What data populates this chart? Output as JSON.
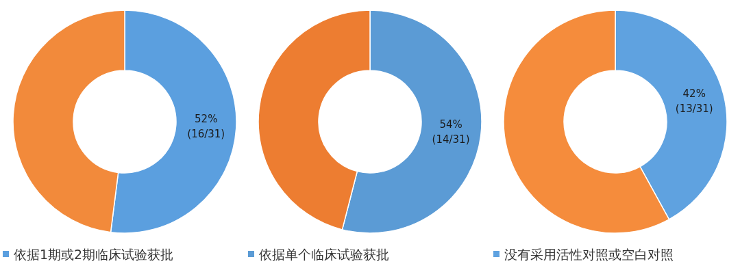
{
  "chart_data": [
    {
      "type": "donut",
      "categories": [
        "依据1期或2期临床试验获批",
        null
      ],
      "values": [
        52,
        48
      ],
      "colors": [
        "#5b9fdf",
        "#f28a3b"
      ],
      "value_labels": [
        "52%\n(16/31)",
        null
      ],
      "legend": "bottom"
    },
    {
      "type": "donut",
      "categories": [
        "依据单个临床试验获批",
        null
      ],
      "values": [
        54,
        46
      ],
      "colors": [
        "#5b9bd5",
        "#ed7d31"
      ],
      "value_labels": [
        "54%\n(14/31)",
        null
      ],
      "legend": "bottom"
    },
    {
      "type": "donut",
      "categories": [
        "没有采用活性对照或空白对照",
        null
      ],
      "values": [
        42,
        58
      ],
      "colors": [
        "#5fa2e0",
        "#f58c3c"
      ],
      "value_labels": [
        "42%\n(13/31)",
        null
      ],
      "legend": "bottom"
    }
  ]
}
